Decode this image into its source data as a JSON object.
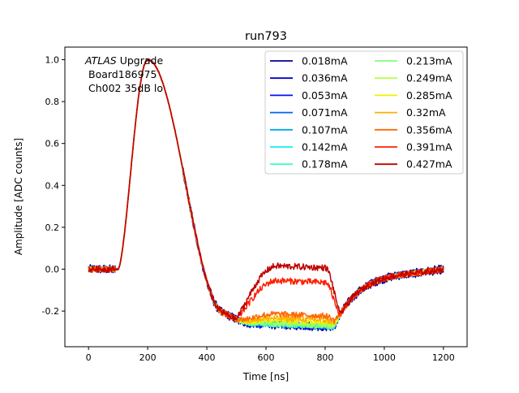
{
  "chart_data": {
    "type": "line",
    "title": "run793",
    "xlabel": "Time [ns]",
    "ylabel": "Amplitude [ADC counts]",
    "xlim": [
      -80,
      1280
    ],
    "ylim": [
      -0.37,
      1.06
    ],
    "xticks": [
      0,
      200,
      400,
      600,
      800,
      1000,
      1200
    ],
    "yticks": [
      -0.2,
      0.0,
      0.2,
      0.4,
      0.6,
      0.8,
      1.0
    ],
    "annotation": {
      "italic": "ATLAS",
      "line1_rest": " Upgrade",
      "line2": "Board186975",
      "line3": "Ch002 35dB lo"
    },
    "legend_position": "upper right",
    "series": [
      {
        "name": "0.018mA",
        "color": "#00008f",
        "lift": 0.0,
        "noise": 0.022
      },
      {
        "name": "0.036mA",
        "color": "#0000c8",
        "lift": 0.0,
        "noise": 0.018
      },
      {
        "name": "0.053mA",
        "color": "#0010ff",
        "lift": 0.0,
        "noise": 0.015
      },
      {
        "name": "0.071mA",
        "color": "#0060ff",
        "lift": 0.0,
        "noise": 0.013
      },
      {
        "name": "0.107mA",
        "color": "#00a8e8",
        "lift": 0.0,
        "noise": 0.012
      },
      {
        "name": "0.142mA",
        "color": "#10f0f0",
        "lift": 0.0,
        "noise": 0.011
      },
      {
        "name": "0.178mA",
        "color": "#40ffb8",
        "lift": 0.0,
        "noise": 0.011
      },
      {
        "name": "0.213mA",
        "color": "#80ff80",
        "lift": 0.0,
        "noise": 0.011
      },
      {
        "name": "0.249mA",
        "color": "#b8ff48",
        "lift": 0.01,
        "noise": 0.011
      },
      {
        "name": "0.285mA",
        "color": "#f0f000",
        "lift": 0.02,
        "noise": 0.012
      },
      {
        "name": "0.32mA",
        "color": "#ffb000",
        "lift": 0.03,
        "noise": 0.013
      },
      {
        "name": "0.356mA",
        "color": "#ff6800",
        "lift": 0.05,
        "noise": 0.014
      },
      {
        "name": "0.391mA",
        "color": "#ff2000",
        "lift": 0.21,
        "noise": 0.015
      },
      {
        "name": "0.427mA",
        "color": "#c00000",
        "lift": 0.28,
        "noise": 0.015
      }
    ]
  }
}
